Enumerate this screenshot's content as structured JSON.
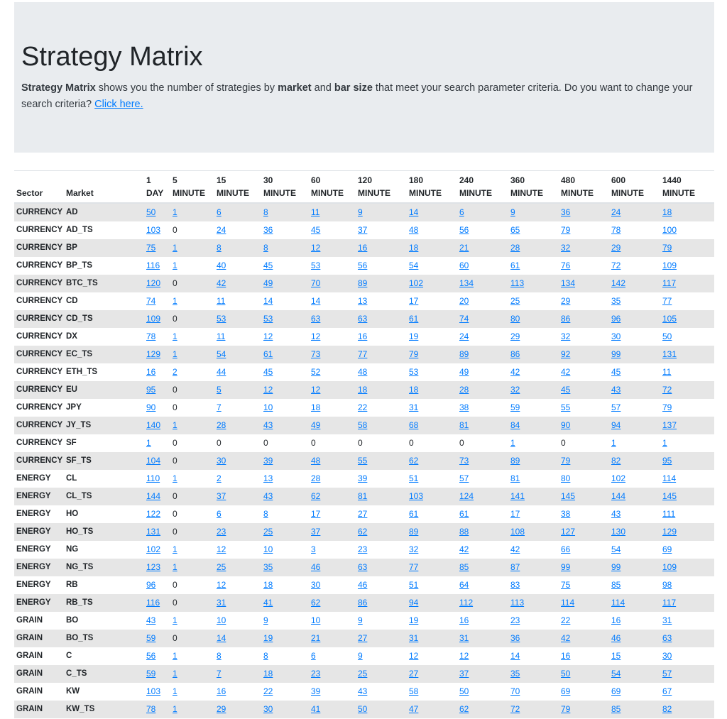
{
  "header": {
    "title": "Strategy Matrix",
    "intro": [
      {
        "text": "Strategy Matrix",
        "bold": true
      },
      {
        "text": " shows you the number of strategies by ",
        "bold": false
      },
      {
        "text": "market",
        "bold": true
      },
      {
        "text": " and ",
        "bold": false
      },
      {
        "text": "bar size",
        "bold": true
      },
      {
        "text": " that meet your search parameter criteria. Do you want to change your search criteria? ",
        "bold": false
      }
    ],
    "link": "Click here."
  },
  "table": {
    "columns": [
      [
        "Sector"
      ],
      [
        "Market"
      ],
      [
        "1",
        "DAY"
      ],
      [
        "5",
        "MINUTE"
      ],
      [
        "15",
        "MINUTE"
      ],
      [
        "30",
        "MINUTE"
      ],
      [
        "60",
        "MINUTE"
      ],
      [
        "120",
        "MINUTE"
      ],
      [
        "180",
        "MINUTE"
      ],
      [
        "240",
        "MINUTE"
      ],
      [
        "360",
        "MINUTE"
      ],
      [
        "480",
        "MINUTE"
      ],
      [
        "600",
        "MINUTE"
      ],
      [
        "1440",
        "MINUTE"
      ]
    ],
    "rows": [
      [
        "CURRENCY",
        "AD",
        50,
        1,
        6,
        8,
        11,
        9,
        14,
        6,
        9,
        36,
        24,
        18
      ],
      [
        "CURRENCY",
        "AD_TS",
        103,
        0,
        24,
        36,
        45,
        37,
        48,
        56,
        65,
        79,
        78,
        100
      ],
      [
        "CURRENCY",
        "BP",
        75,
        1,
        8,
        8,
        12,
        16,
        18,
        21,
        28,
        32,
        29,
        79
      ],
      [
        "CURRENCY",
        "BP_TS",
        116,
        1,
        40,
        45,
        53,
        56,
        54,
        60,
        61,
        76,
        72,
        109
      ],
      [
        "CURRENCY",
        "BTC_TS",
        120,
        0,
        42,
        49,
        70,
        89,
        102,
        134,
        113,
        134,
        142,
        117
      ],
      [
        "CURRENCY",
        "CD",
        74,
        1,
        11,
        14,
        14,
        13,
        17,
        20,
        25,
        29,
        35,
        77
      ],
      [
        "CURRENCY",
        "CD_TS",
        109,
        0,
        53,
        53,
        63,
        63,
        61,
        74,
        80,
        86,
        96,
        105
      ],
      [
        "CURRENCY",
        "DX",
        78,
        1,
        11,
        12,
        12,
        16,
        19,
        24,
        29,
        32,
        30,
        50
      ],
      [
        "CURRENCY",
        "EC_TS",
        129,
        1,
        54,
        61,
        73,
        77,
        79,
        89,
        86,
        92,
        99,
        131
      ],
      [
        "CURRENCY",
        "ETH_TS",
        16,
        2,
        44,
        45,
        52,
        48,
        53,
        49,
        42,
        42,
        45,
        11
      ],
      [
        "CURRENCY",
        "EU",
        95,
        0,
        5,
        12,
        12,
        18,
        18,
        28,
        32,
        45,
        43,
        72
      ],
      [
        "CURRENCY",
        "JPY",
        90,
        0,
        7,
        10,
        18,
        22,
        31,
        38,
        59,
        55,
        57,
        79
      ],
      [
        "CURRENCY",
        "JY_TS",
        140,
        1,
        28,
        43,
        49,
        58,
        68,
        81,
        84,
        90,
        94,
        137
      ],
      [
        "CURRENCY",
        "SF",
        1,
        0,
        0,
        0,
        0,
        0,
        0,
        0,
        1,
        0,
        1,
        1
      ],
      [
        "CURRENCY",
        "SF_TS",
        104,
        0,
        30,
        39,
        48,
        55,
        62,
        73,
        89,
        79,
        82,
        95
      ],
      [
        "ENERGY",
        "CL",
        110,
        1,
        2,
        13,
        28,
        39,
        51,
        57,
        81,
        80,
        102,
        114
      ],
      [
        "ENERGY",
        "CL_TS",
        144,
        0,
        37,
        43,
        62,
        81,
        103,
        124,
        141,
        145,
        144,
        145
      ],
      [
        "ENERGY",
        "HO",
        122,
        0,
        6,
        8,
        17,
        27,
        61,
        61,
        17,
        38,
        43,
        111
      ],
      [
        "ENERGY",
        "HO_TS",
        131,
        0,
        23,
        25,
        37,
        62,
        89,
        88,
        108,
        127,
        130,
        129
      ],
      [
        "ENERGY",
        "NG",
        102,
        1,
        12,
        10,
        3,
        23,
        32,
        42,
        42,
        66,
        54,
        69
      ],
      [
        "ENERGY",
        "NG_TS",
        123,
        1,
        25,
        35,
        46,
        63,
        77,
        85,
        87,
        99,
        99,
        109
      ],
      [
        "ENERGY",
        "RB",
        96,
        0,
        12,
        18,
        30,
        46,
        51,
        64,
        83,
        75,
        85,
        98
      ],
      [
        "ENERGY",
        "RB_TS",
        116,
        0,
        31,
        41,
        62,
        86,
        94,
        112,
        113,
        114,
        114,
        117
      ],
      [
        "GRAIN",
        "BO",
        43,
        1,
        10,
        9,
        10,
        9,
        19,
        16,
        23,
        22,
        16,
        31
      ],
      [
        "GRAIN",
        "BO_TS",
        59,
        0,
        14,
        19,
        21,
        27,
        31,
        31,
        36,
        42,
        46,
        63
      ],
      [
        "GRAIN",
        "C",
        56,
        1,
        8,
        8,
        6,
        9,
        12,
        12,
        14,
        16,
        15,
        30
      ],
      [
        "GRAIN",
        "C_TS",
        59,
        1,
        7,
        18,
        23,
        25,
        27,
        37,
        35,
        50,
        54,
        57
      ],
      [
        "GRAIN",
        "KW",
        103,
        1,
        16,
        22,
        39,
        43,
        58,
        50,
        70,
        69,
        69,
        67
      ],
      [
        "GRAIN",
        "KW_TS",
        78,
        1,
        29,
        30,
        41,
        50,
        47,
        62,
        72,
        79,
        85,
        82
      ]
    ]
  }
}
